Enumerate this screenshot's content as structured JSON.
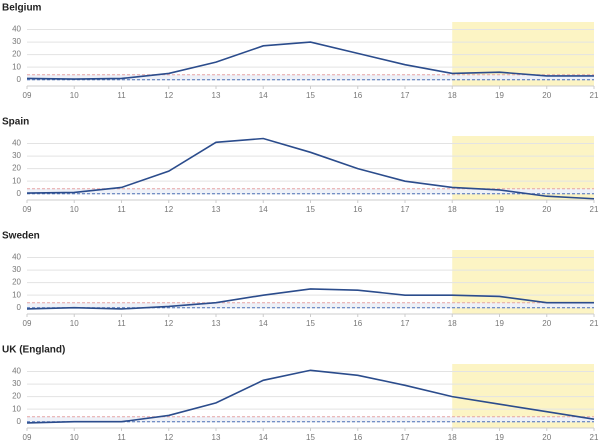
{
  "chart_data": [
    {
      "type": "line",
      "title": "Belgium",
      "x": [
        9,
        10,
        11,
        12,
        13,
        14,
        15,
        16,
        17,
        18,
        19,
        20,
        21
      ],
      "series": [
        {
          "color": "#2b4c8c",
          "values": [
            1,
            0.5,
            1,
            5,
            14,
            27,
            30,
            21,
            12,
            5,
            6,
            3,
            3
          ]
        }
      ],
      "xlim": [
        9,
        21
      ],
      "xticks": [
        {
          "value": 9,
          "label": "09"
        },
        10,
        11,
        12,
        13,
        14,
        15,
        16,
        17,
        18,
        19,
        20,
        21
      ],
      "ylim": [
        -5,
        46
      ],
      "yticks": [
        0,
        10,
        20,
        30,
        40
      ],
      "grid": true,
      "highlight": {
        "xrange": [
          18,
          21
        ],
        "color": "#fcf4c4"
      },
      "reference_lines": [
        {
          "value": 4,
          "color": "#e6a3a3"
        },
        {
          "value": 0,
          "color": "#4a6fb5"
        }
      ]
    },
    {
      "type": "line",
      "title": "Spain",
      "x": [
        9,
        10,
        11,
        12,
        13,
        14,
        15,
        16,
        17,
        18,
        19,
        20,
        21
      ],
      "series": [
        {
          "color": "#2b4c8c",
          "values": [
            0.5,
            1,
            5,
            18,
            41,
            44,
            33,
            20,
            10,
            5,
            3,
            -2,
            -4
          ]
        }
      ],
      "xlim": [
        9,
        21
      ],
      "xticks": [
        {
          "value": 9,
          "label": "09"
        },
        10,
        11,
        12,
        13,
        14,
        15,
        16,
        17,
        18,
        19,
        20,
        21
      ],
      "ylim": [
        -5,
        46
      ],
      "yticks": [
        0,
        10,
        20,
        30,
        40
      ],
      "grid": true,
      "highlight": {
        "xrange": [
          18,
          21
        ],
        "color": "#fcf4c4"
      },
      "reference_lines": [
        {
          "value": 4,
          "color": "#e6a3a3"
        },
        {
          "value": 0,
          "color": "#4a6fb5"
        }
      ]
    },
    {
      "type": "line",
      "title": "Sweden",
      "x": [
        9,
        10,
        11,
        12,
        13,
        14,
        15,
        16,
        17,
        18,
        19,
        20,
        21
      ],
      "series": [
        {
          "color": "#2b4c8c",
          "values": [
            -1,
            0,
            -1,
            1,
            4,
            10,
            15,
            14,
            10,
            10,
            9,
            4,
            4
          ]
        }
      ],
      "xlim": [
        9,
        21
      ],
      "xticks": [
        {
          "value": 9,
          "label": "09"
        },
        10,
        11,
        12,
        13,
        14,
        15,
        16,
        17,
        18,
        19,
        20,
        21
      ],
      "ylim": [
        -5,
        46
      ],
      "yticks": [
        0,
        10,
        20,
        30,
        40
      ],
      "grid": true,
      "highlight": {
        "xrange": [
          18,
          21
        ],
        "color": "#fcf4c4"
      },
      "reference_lines": [
        {
          "value": 4,
          "color": "#e6a3a3"
        },
        {
          "value": 0,
          "color": "#4a6fb5"
        }
      ]
    },
    {
      "type": "line",
      "title": "UK (England)",
      "x": [
        9,
        10,
        11,
        12,
        13,
        14,
        15,
        16,
        17,
        18,
        19,
        20,
        21
      ],
      "series": [
        {
          "color": "#2b4c8c",
          "values": [
            -1,
            0,
            0,
            5,
            15,
            33,
            41,
            37,
            29,
            20,
            14,
            8,
            2
          ]
        }
      ],
      "xlim": [
        9,
        21
      ],
      "xticks": [
        {
          "value": 9,
          "label": "09"
        },
        10,
        11,
        12,
        13,
        14,
        15,
        16,
        17,
        18,
        19,
        20,
        21
      ],
      "ylim": [
        -5,
        46
      ],
      "yticks": [
        0,
        10,
        20,
        30,
        40
      ],
      "grid": true,
      "highlight": {
        "xrange": [
          18,
          21
        ],
        "color": "#fcf4c4"
      },
      "reference_lines": [
        {
          "value": 4,
          "color": "#e6a3a3"
        },
        {
          "value": 0,
          "color": "#4a6fb5"
        }
      ]
    }
  ]
}
